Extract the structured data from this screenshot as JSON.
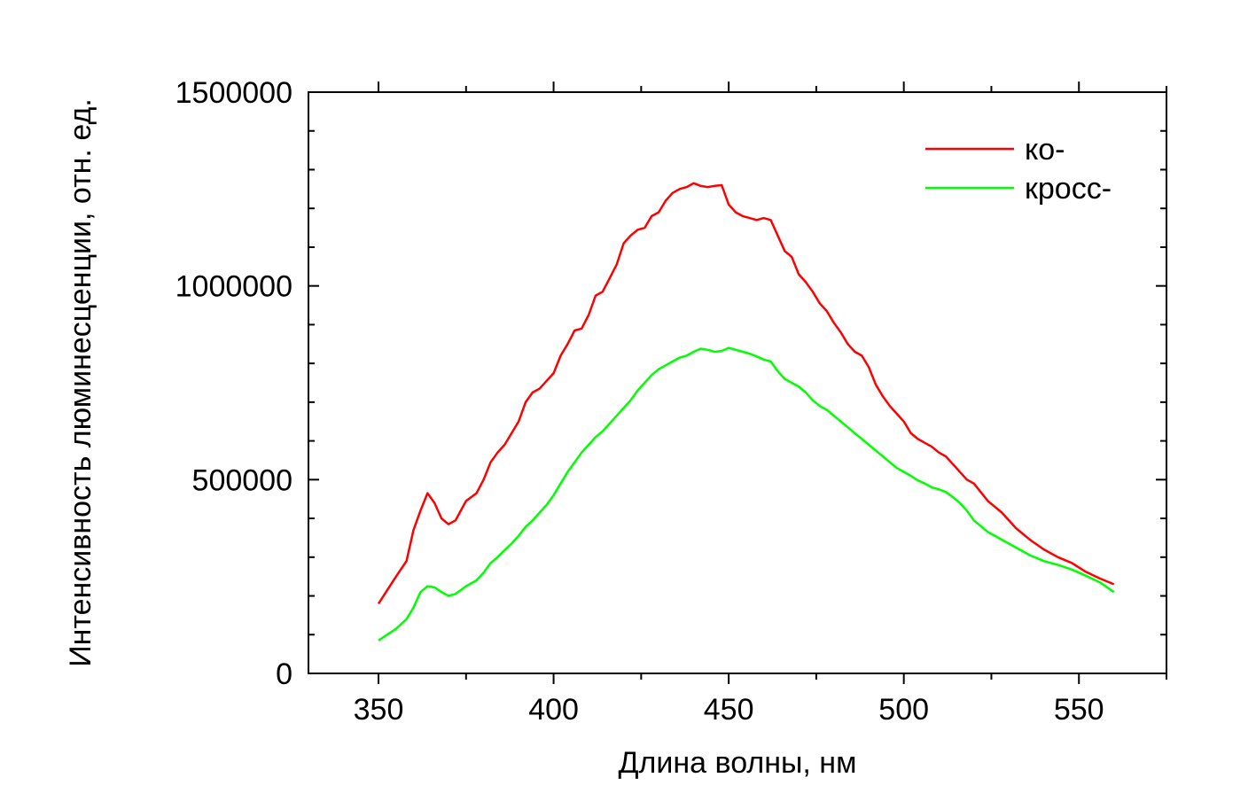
{
  "chart_data": {
    "type": "line",
    "title": "",
    "xlabel": "Длина волны, нм",
    "ylabel": "Интенсивность люминесценции, отн. ед.",
    "xlim": [
      330,
      575
    ],
    "ylim": [
      0,
      1500000
    ],
    "x_ticks": [
      350,
      400,
      450,
      500,
      550
    ],
    "x_tick_labels": [
      "350",
      "400",
      "450",
      "500",
      "550"
    ],
    "y_ticks": [
      0,
      500000,
      1000000,
      1500000
    ],
    "y_tick_labels": [
      "0",
      "500000",
      "1000000",
      "1500000"
    ],
    "grid": false,
    "legend_position": "top-right",
    "series": [
      {
        "name": "ко-",
        "color": "#ff0000",
        "x": [
          350,
          355,
          358,
          360,
          362,
          364,
          366,
          368,
          370,
          372,
          375,
          378,
          380,
          382,
          384,
          386,
          388,
          390,
          392,
          394,
          396,
          398,
          400,
          402,
          404,
          406,
          408,
          410,
          412,
          414,
          416,
          418,
          420,
          422,
          424,
          426,
          428,
          430,
          432,
          434,
          436,
          438,
          440,
          442,
          444,
          446,
          448,
          450,
          452,
          454,
          456,
          458,
          460,
          462,
          464,
          466,
          468,
          470,
          472,
          474,
          476,
          478,
          480,
          482,
          484,
          486,
          488,
          490,
          492,
          494,
          496,
          498,
          500,
          502,
          504,
          506,
          508,
          510,
          512,
          514,
          516,
          518,
          520,
          524,
          528,
          532,
          536,
          540,
          544,
          548,
          552,
          556,
          560
        ],
        "y": [
          180000,
          250000,
          290000,
          370000,
          420000,
          465000,
          440000,
          400000,
          385000,
          395000,
          445000,
          465000,
          500000,
          545000,
          570000,
          590000,
          620000,
          650000,
          700000,
          725000,
          735000,
          755000,
          775000,
          820000,
          850000,
          885000,
          890000,
          925000,
          975000,
          985000,
          1020000,
          1055000,
          1110000,
          1130000,
          1145000,
          1150000,
          1180000,
          1190000,
          1220000,
          1240000,
          1250000,
          1255000,
          1265000,
          1258000,
          1255000,
          1258000,
          1260000,
          1210000,
          1190000,
          1180000,
          1175000,
          1170000,
          1175000,
          1170000,
          1130000,
          1090000,
          1075000,
          1030000,
          1010000,
          985000,
          955000,
          935000,
          905000,
          880000,
          850000,
          830000,
          820000,
          790000,
          745000,
          715000,
          690000,
          670000,
          650000,
          620000,
          605000,
          595000,
          585000,
          570000,
          560000,
          540000,
          520000,
          500000,
          490000,
          445000,
          415000,
          375000,
          345000,
          320000,
          300000,
          285000,
          262000,
          245000,
          230000
        ]
      },
      {
        "name": "кросс-",
        "color": "#00ff00",
        "x": [
          350,
          355,
          358,
          360,
          362,
          364,
          366,
          368,
          370,
          372,
          375,
          378,
          380,
          382,
          384,
          386,
          388,
          390,
          392,
          394,
          396,
          398,
          400,
          402,
          404,
          406,
          408,
          410,
          412,
          414,
          416,
          418,
          420,
          422,
          424,
          426,
          428,
          430,
          432,
          434,
          436,
          438,
          440,
          442,
          444,
          446,
          448,
          450,
          452,
          454,
          456,
          458,
          460,
          462,
          464,
          466,
          468,
          470,
          472,
          474,
          476,
          478,
          480,
          482,
          484,
          486,
          488,
          490,
          492,
          494,
          496,
          498,
          500,
          502,
          504,
          506,
          508,
          510,
          512,
          514,
          516,
          518,
          520,
          524,
          528,
          532,
          536,
          540,
          544,
          548,
          552,
          556,
          560
        ],
        "y": [
          85000,
          115000,
          140000,
          170000,
          210000,
          225000,
          222000,
          210000,
          200000,
          205000,
          225000,
          240000,
          260000,
          285000,
          300000,
          318000,
          335000,
          355000,
          378000,
          395000,
          415000,
          435000,
          460000,
          490000,
          520000,
          545000,
          570000,
          590000,
          610000,
          625000,
          645000,
          665000,
          685000,
          705000,
          730000,
          750000,
          770000,
          785000,
          795000,
          805000,
          815000,
          820000,
          830000,
          838000,
          835000,
          830000,
          832000,
          840000,
          835000,
          830000,
          825000,
          818000,
          810000,
          805000,
          780000,
          760000,
          750000,
          740000,
          725000,
          705000,
          690000,
          680000,
          665000,
          650000,
          635000,
          620000,
          605000,
          590000,
          575000,
          560000,
          545000,
          530000,
          520000,
          510000,
          498000,
          490000,
          480000,
          475000,
          468000,
          455000,
          440000,
          420000,
          395000,
          365000,
          345000,
          325000,
          305000,
          290000,
          280000,
          268000,
          252000,
          235000,
          210000
        ]
      }
    ]
  }
}
